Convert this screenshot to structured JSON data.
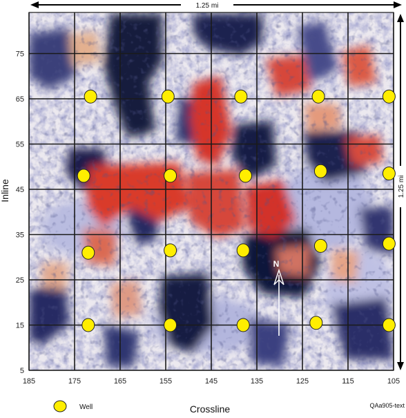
{
  "map": {
    "scale_top": "1.25 mi",
    "scale_right": "1.25 mi",
    "x_axis_title": "Crossline",
    "y_axis_title": "Inline",
    "north_label": "N",
    "x_ticks": [
      "185",
      "175",
      "165",
      "155",
      "145",
      "135",
      "125",
      "115",
      "105"
    ],
    "y_ticks": [
      "75",
      "65",
      "55",
      "45",
      "35",
      "25",
      "15",
      "5"
    ],
    "legend_label": "Well",
    "figure_code": "QAa905-text",
    "colors": {
      "well_fill": "#ffee00",
      "grid": "#1a1a1a",
      "dark_blue": "#151a40",
      "mid_blue": "#5f64a6",
      "light_blue": "#c7c9e8",
      "red": "#d9342a",
      "orange": "#e2845e",
      "background": "#ece9ef"
    }
  },
  "wells": [
    {
      "crossline": 171.5,
      "inline": 65.5
    },
    {
      "crossline": 154.5,
      "inline": 65.5
    },
    {
      "crossline": 138.5,
      "inline": 65.5
    },
    {
      "crossline": 121.5,
      "inline": 65.5
    },
    {
      "crossline": 106,
      "inline": 65.5
    },
    {
      "crossline": 173,
      "inline": 48
    },
    {
      "crossline": 154,
      "inline": 48
    },
    {
      "crossline": 137.5,
      "inline": 48
    },
    {
      "crossline": 121,
      "inline": 49
    },
    {
      "crossline": 106,
      "inline": 48.5
    },
    {
      "crossline": 172,
      "inline": 31
    },
    {
      "crossline": 154,
      "inline": 31.5
    },
    {
      "crossline": 138,
      "inline": 31.5
    },
    {
      "crossline": 121,
      "inline": 32.5
    },
    {
      "crossline": 106,
      "inline": 33
    },
    {
      "crossline": 172,
      "inline": 15
    },
    {
      "crossline": 154,
      "inline": 15
    },
    {
      "crossline": 138,
      "inline": 15
    },
    {
      "crossline": 122,
      "inline": 15.5
    },
    {
      "crossline": 106,
      "inline": 15
    }
  ]
}
